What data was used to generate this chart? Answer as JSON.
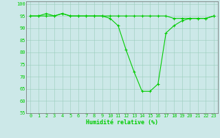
{
  "x": [
    0,
    1,
    2,
    3,
    4,
    5,
    6,
    7,
    8,
    9,
    10,
    11,
    12,
    13,
    14,
    15,
    16,
    17,
    18,
    19,
    20,
    21,
    22,
    23
  ],
  "y_main": [
    95,
    95,
    96,
    95,
    96,
    95,
    95,
    95,
    95,
    95,
    94,
    91,
    81,
    72,
    64,
    64,
    67,
    88,
    91,
    93,
    94,
    94,
    94,
    95
  ],
  "y_upper": [
    95,
    95,
    95,
    95,
    96,
    95,
    95,
    95,
    95,
    95,
    95,
    95,
    95,
    95,
    95,
    95,
    95,
    95,
    94,
    94,
    94,
    94,
    94,
    95
  ],
  "xlabel": "Humidité relative (%)",
  "ylim": [
    55,
    101
  ],
  "xlim": [
    -0.5,
    23.5
  ],
  "yticks": [
    55,
    60,
    65,
    70,
    75,
    80,
    85,
    90,
    95,
    100
  ],
  "xticks": [
    0,
    1,
    2,
    3,
    4,
    5,
    6,
    7,
    8,
    9,
    10,
    11,
    12,
    13,
    14,
    15,
    16,
    17,
    18,
    19,
    20,
    21,
    22,
    23
  ],
  "line_color": "#00cc00",
  "bg_color": "#cce8e8",
  "grid_color": "#99ccbb",
  "axis_color": "#666666",
  "tick_fontsize": 5.0,
  "xlabel_fontsize": 6.0,
  "linewidth": 0.8,
  "markersize": 3.0
}
